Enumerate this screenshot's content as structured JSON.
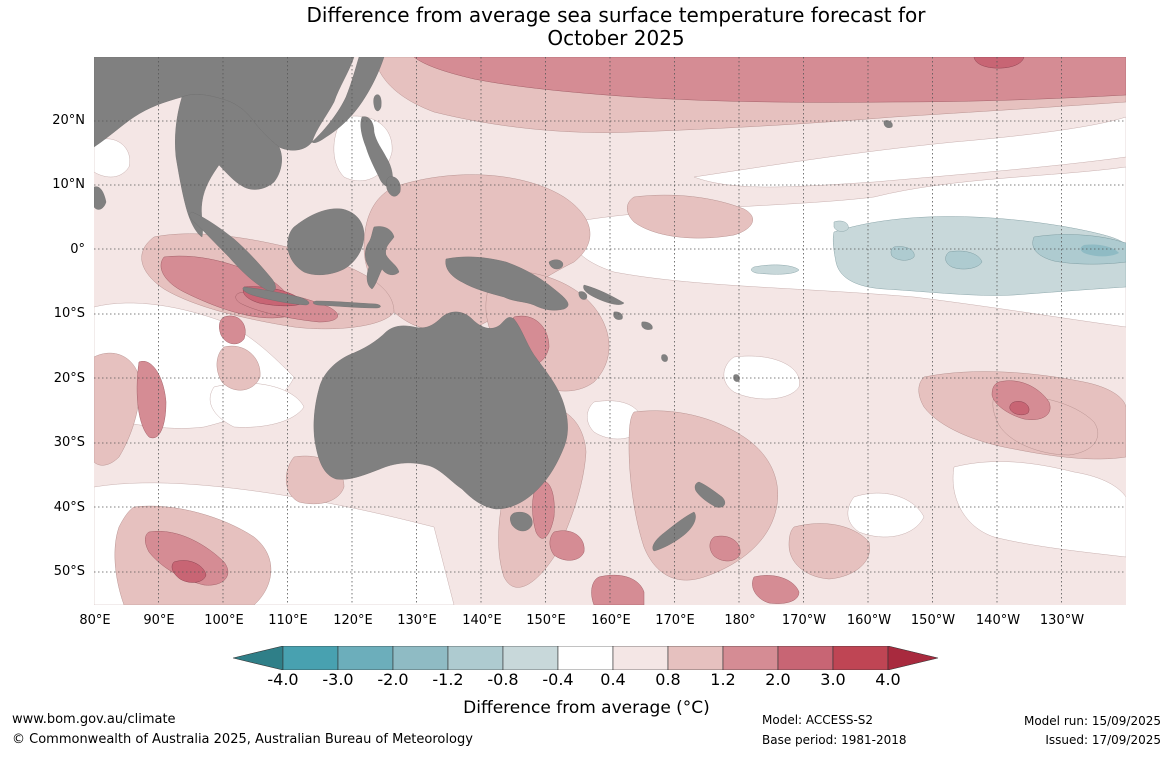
{
  "title": {
    "line1": "Difference from average sea surface temperature forecast for",
    "line2": "October 2025"
  },
  "map": {
    "lat_labels": [
      "20°N",
      "10°N",
      "0°",
      "10°S",
      "20°S",
      "30°S",
      "40°S",
      "50°S"
    ],
    "lon_labels": [
      "80°E",
      "90°E",
      "100°E",
      "110°E",
      "120°E",
      "130°E",
      "140°E",
      "150°E",
      "160°E",
      "170°E",
      "180°",
      "170°W",
      "160°W",
      "150°W",
      "140°W",
      "130°W"
    ],
    "land_color": "#808080",
    "grid_style": "dotted"
  },
  "colorbar": {
    "title": "Difference from average (°C)",
    "ticks": [
      "-4.0",
      "-3.0",
      "-2.0",
      "-1.2",
      "-0.8",
      "-0.4",
      "0.4",
      "0.8",
      "1.2",
      "2.0",
      "3.0",
      "4.0"
    ],
    "colors": [
      "#2f7f88",
      "#48a1b0",
      "#6caebb",
      "#8fbbc4",
      "#aecbd0",
      "#c8d8da",
      "#ffffff",
      "#f4e6e5",
      "#e6c1bf",
      "#d58c94",
      "#c86574",
      "#bf4554",
      "#a82a3e"
    ]
  },
  "footer": {
    "website": "www.bom.gov.au/climate",
    "copyright": "© Commonwealth of Australia 2025, Australian Bureau of Meteorology",
    "model": "Model: ACCESS-S2",
    "base_period": "Base period: 1981-2018",
    "model_run": "Model run: 15/09/2025",
    "issued": "Issued: 17/09/2025"
  }
}
